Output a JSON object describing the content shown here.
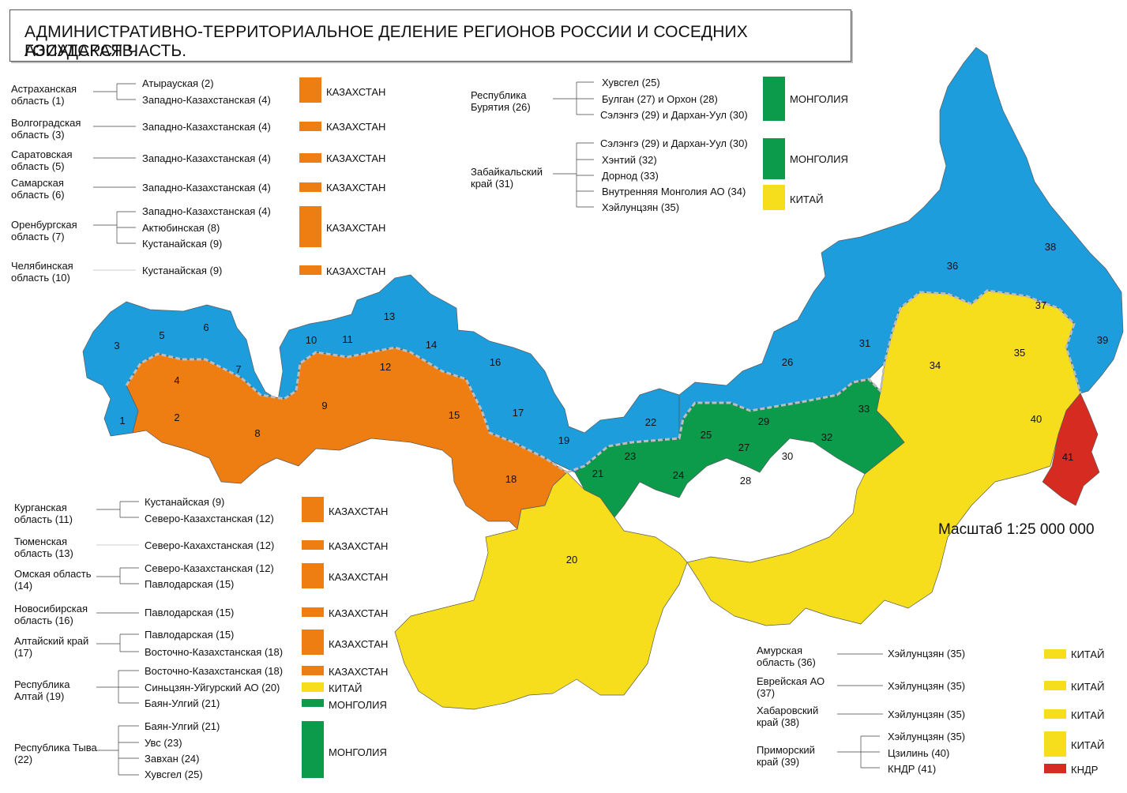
{
  "title": {
    "line1": "АДМИНИСТРАТИВНО-ТЕРРИТОРИАЛЬНОЕ ДЕЛЕНИЕ РЕГИОНОВ РОССИИ И СОСЕДНИХ ГОСУДАРСТВ.",
    "line2": "АЗИАТСКАЯ ЧАСТЬ."
  },
  "scale": "Масштаб 1:25 000 000",
  "colors": {
    "kazakhstan": "#ee7d12",
    "mongolia": "#0b9b4a",
    "china": "#f7de1c",
    "dprk": "#d62b20",
    "russia": "#1d9ddb"
  },
  "legend": {
    "r1": {
      "region": "Астраханская область (1)",
      "neighbors": [
        "Атырауская (2)",
        "Западно-Казахстанская (4)"
      ],
      "country": "КАЗАХСТАН"
    },
    "r2": {
      "region": "Волгоградская область (3)",
      "neighbors": [
        "Западно-Казахстанская (4)"
      ],
      "country": "КАЗАХСТАН"
    },
    "r3": {
      "region": "Саратовская область (5)",
      "neighbors": [
        "Западно-Казахстанская (4)"
      ],
      "country": "КАЗАХСТАН"
    },
    "r4": {
      "region": "Самарская область (6)",
      "neighbors": [
        "Западно-Казахстанская (4)"
      ],
      "country": "КАЗАХСТАН"
    },
    "r5": {
      "region": "Оренбургская область (7)",
      "neighbors": [
        "Западно-Казахстанская (4)",
        "Актюбинская (8)",
        "Кустанайская (9)"
      ],
      "country": "КАЗАХСТАН"
    },
    "r6": {
      "region": "Челябинская область (10)",
      "neighbors": [
        "Кустанайская (9)"
      ],
      "country": "КАЗАХСТАН"
    },
    "r7": {
      "region": "Курганская область (11)",
      "neighbors": [
        "Кустанайская (9)",
        "Северо-Казахстанская (12)"
      ],
      "country": "КАЗАХСТАН"
    },
    "r8": {
      "region": "Тюменская область (13)",
      "neighbors": [
        "Северо-Кахахстанская (12)"
      ],
      "country": "КАЗАХСТАН"
    },
    "r9": {
      "region": "Омская область (14)",
      "neighbors": [
        "Северо-Казахстанская (12)",
        "Павлодарская (15)"
      ],
      "country": "КАЗАХСТАН"
    },
    "r10": {
      "region": "Новосибирская область (16)",
      "neighbors": [
        "Павлодарская (15)"
      ],
      "country": "КАЗАХСТАН"
    },
    "r11": {
      "region": "Алтайский край (17)",
      "neighbors": [
        "Павлодарская (15)",
        "Восточно-Казахстанская (18)"
      ],
      "country": "КАЗАХСТАН"
    },
    "r12": {
      "region": "Республика Алтай (19)",
      "neighbors": [
        "Восточно-Казахстанская (18)",
        "Синьцзян-Уйгурский АО (20)",
        "Баян-Улгий (21)"
      ],
      "countries": [
        "КАЗАХСТАН",
        "КИТАЙ",
        "МОНГОЛИЯ"
      ]
    },
    "r13": {
      "region": "Республика Тыва (22)",
      "neighbors": [
        "Баян-Улгий (21)",
        "Увс (23)",
        "Завхан (24)",
        "Хувсгел (25)"
      ],
      "country": "МОНГОЛИЯ"
    },
    "r14": {
      "region": "Республика Бурятия (26)",
      "neighbors": [
        "Хувсгел (25)",
        "Булган (27) и Орхон (28)",
        "Сэлэнгэ (29) и Дархан-Уул (30)"
      ],
      "country": "МОНГОЛИЯ"
    },
    "r15": {
      "region": "Забайкальский край (31)",
      "neighbors": [
        "Сэлэнгэ (29) и Дархан-Уул (30)",
        "Хэнтий (32)",
        "Дорнод (33)",
        "Внутренняя Монголия АО (34)",
        "Хэйлунцзян (35)"
      ],
      "countries": [
        "МОНГОЛИЯ",
        "КИТАЙ"
      ]
    },
    "r16": {
      "region": "Амурская область (36)",
      "neighbors": [
        "Хэйлунцзян (35)"
      ],
      "country": "КИТАЙ"
    },
    "r17": {
      "region": "Еврейская АО (37)",
      "neighbors": [
        "Хэйлунцзян (35)"
      ],
      "country": "КИТАЙ"
    },
    "r18": {
      "region": "Хабаровский край (38)",
      "neighbors": [
        "Хэйлунцзян (35)"
      ],
      "country": "КИТАЙ"
    },
    "r19": {
      "region": "Приморский край (39)",
      "neighbors": [
        "Хэйлунцзян (35)",
        "Цзилинь (40)",
        "КНДР (41)"
      ],
      "countries": [
        "КИТАЙ",
        "КНДР"
      ]
    }
  },
  "map_numbers": [
    "1",
    "2",
    "3",
    "4",
    "5",
    "6",
    "7",
    "8",
    "9",
    "10",
    "11",
    "12",
    "13",
    "14",
    "15",
    "16",
    "17",
    "18",
    "19",
    "20",
    "21",
    "22",
    "23",
    "24",
    "25",
    "26",
    "27",
    "28",
    "29",
    "30",
    "31",
    "32",
    "33",
    "34",
    "35",
    "36",
    "37",
    "38",
    "39",
    "40",
    "41"
  ]
}
